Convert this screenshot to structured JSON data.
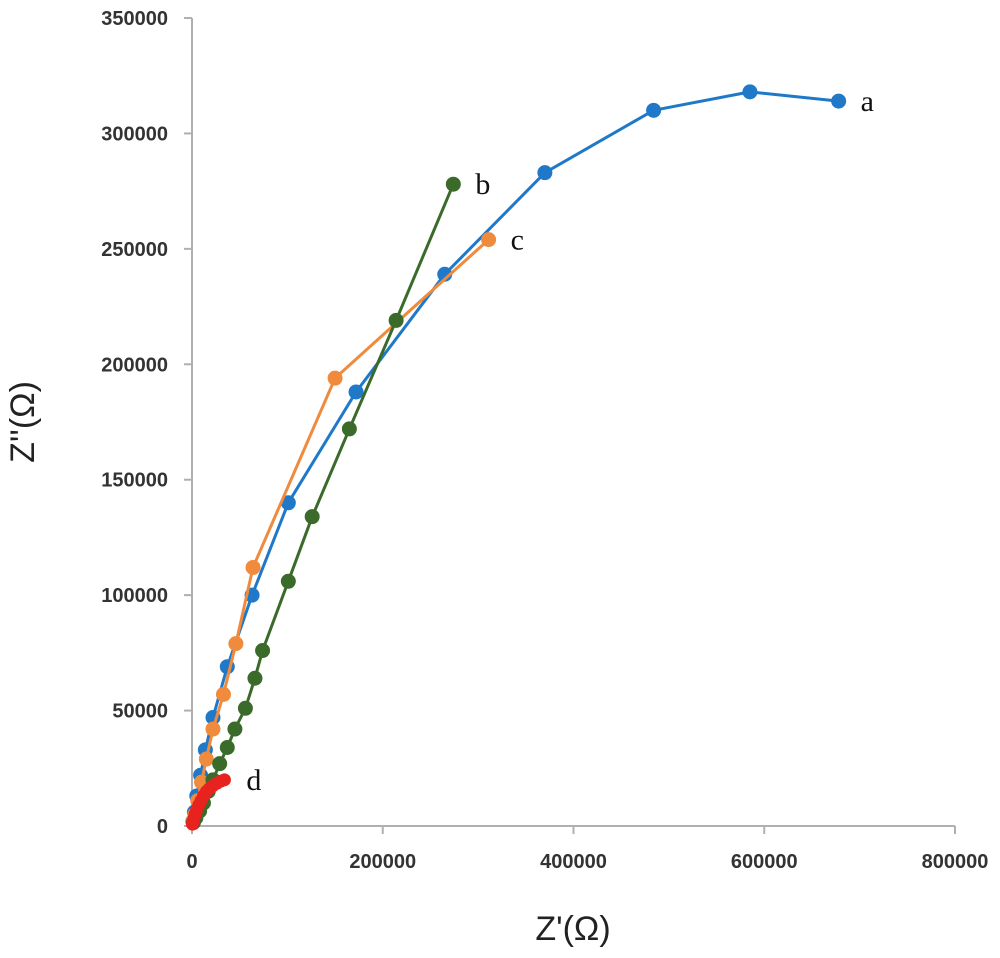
{
  "chart_data": {
    "type": "scatter",
    "xlabel": "Z'(Ω)",
    "ylabel": "Z''(Ω)",
    "xlim": [
      0,
      800000
    ],
    "ylim": [
      0,
      350000
    ],
    "x_ticks": [
      "0",
      "200000",
      "400000",
      "600000",
      "800000"
    ],
    "y_ticks": [
      "0",
      "50000",
      "100000",
      "150000",
      "200000",
      "250000",
      "300000",
      "350000"
    ],
    "grid": false,
    "legend": "none",
    "series": [
      {
        "name": "a",
        "color": "#1f78c8",
        "x": [
          800,
          2500,
          5000,
          9000,
          14000,
          22000,
          37000,
          63000,
          101000,
          172000,
          265000,
          370000,
          484000,
          585000,
          678000
        ],
        "y": [
          2000,
          6000,
          13000,
          22000,
          33000,
          47000,
          69000,
          100000,
          140000,
          188000,
          239000,
          283000,
          310000,
          318000,
          314000
        ]
      },
      {
        "name": "b",
        "color": "#3a6b2a",
        "x": [
          1500,
          4000,
          8000,
          12000,
          17000,
          22000,
          29000,
          37000,
          45000,
          56000,
          66000,
          74000,
          101000,
          126000,
          165000,
          214000,
          274000
        ],
        "y": [
          1500,
          3500,
          6500,
          10000,
          15000,
          20000,
          27000,
          34000,
          42000,
          51000,
          64000,
          76000,
          106000,
          134000,
          172000,
          219000,
          278000
        ]
      },
      {
        "name": "c",
        "color": "#f08a3c",
        "x": [
          1000,
          3000,
          6000,
          10000,
          15000,
          22000,
          33000,
          46000,
          64000,
          150000,
          311000
        ],
        "y": [
          2000,
          5000,
          11000,
          19000,
          29000,
          42000,
          57000,
          79000,
          112000,
          194000,
          254000
        ]
      },
      {
        "name": "d",
        "color": "#e8221e",
        "x": [
          500,
          1200,
          2200,
          3400,
          5000,
          7000,
          9500,
          12000,
          15000,
          18500,
          22000,
          26000,
          30000,
          34000
        ],
        "y": [
          800,
          2000,
          3500,
          5200,
          7000,
          9000,
          11000,
          13000,
          14800,
          16300,
          17500,
          18500,
          19400,
          20000
        ]
      }
    ]
  }
}
